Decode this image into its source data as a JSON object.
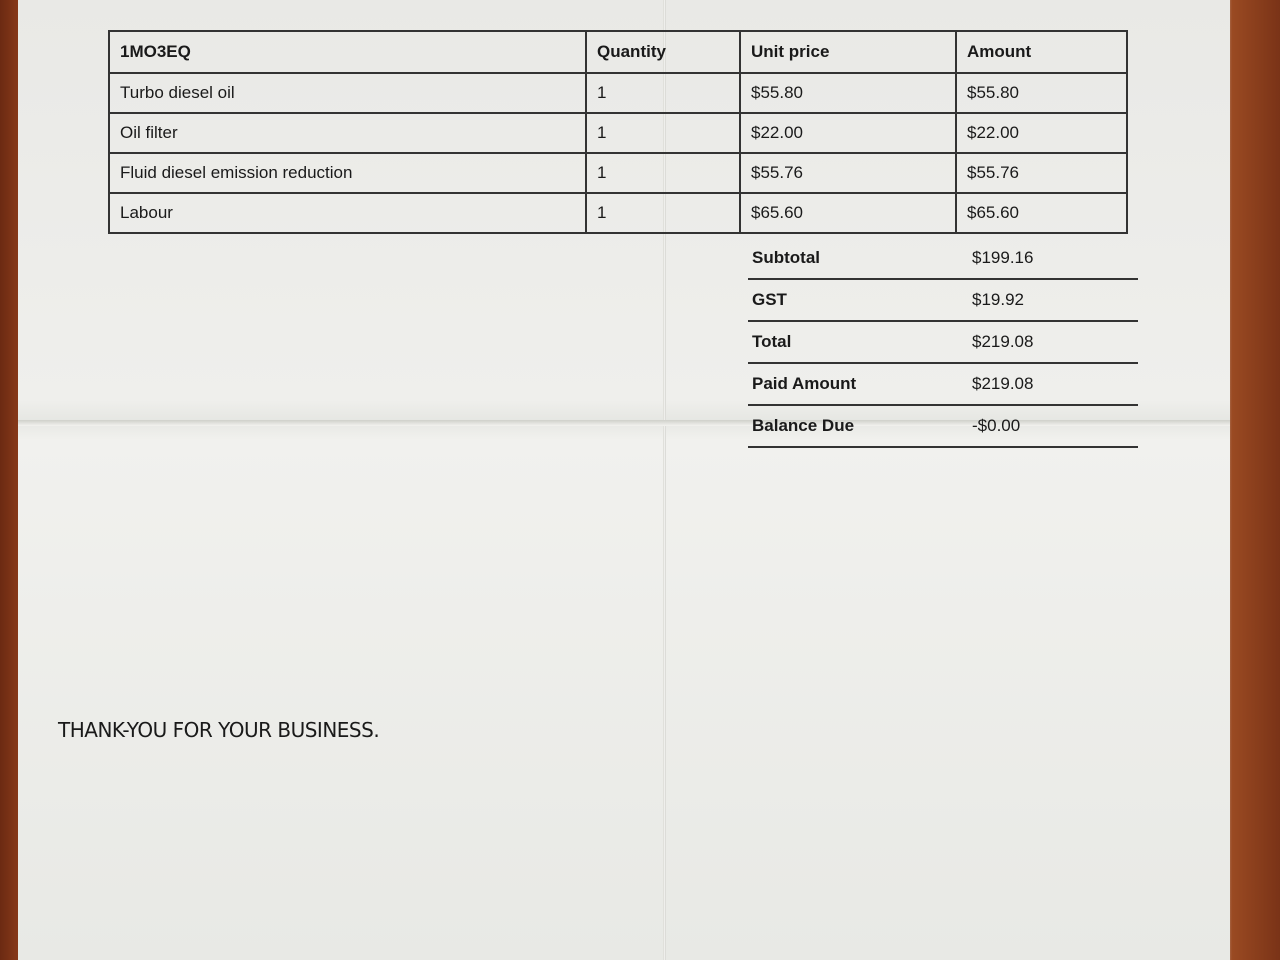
{
  "table": {
    "headers": [
      "1MO3EQ",
      "Quantity",
      "Unit price",
      "Amount"
    ],
    "rows": [
      {
        "description": "Turbo diesel oil",
        "quantity": "1",
        "unit_price": "$55.80",
        "amount": "$55.80"
      },
      {
        "description": "Oil filter",
        "quantity": "1",
        "unit_price": "$22.00",
        "amount": "$22.00"
      },
      {
        "description": "Fluid diesel emission reduction",
        "quantity": "1",
        "unit_price": "$55.76",
        "amount": "$55.76"
      },
      {
        "description": "Labour",
        "quantity": "1",
        "unit_price": "$65.60",
        "amount": "$65.60"
      }
    ]
  },
  "summary": [
    {
      "label": "Subtotal",
      "value": "$199.16"
    },
    {
      "label": "GST",
      "value": "$19.92"
    },
    {
      "label": "Total",
      "value": "$219.08"
    },
    {
      "label": "Paid Amount",
      "value": "$219.08"
    },
    {
      "label": "Balance Due",
      "value": "-$0.00"
    }
  ],
  "footer": {
    "thanks": "THANK-YOU FOR YOUR BUSINESS."
  }
}
